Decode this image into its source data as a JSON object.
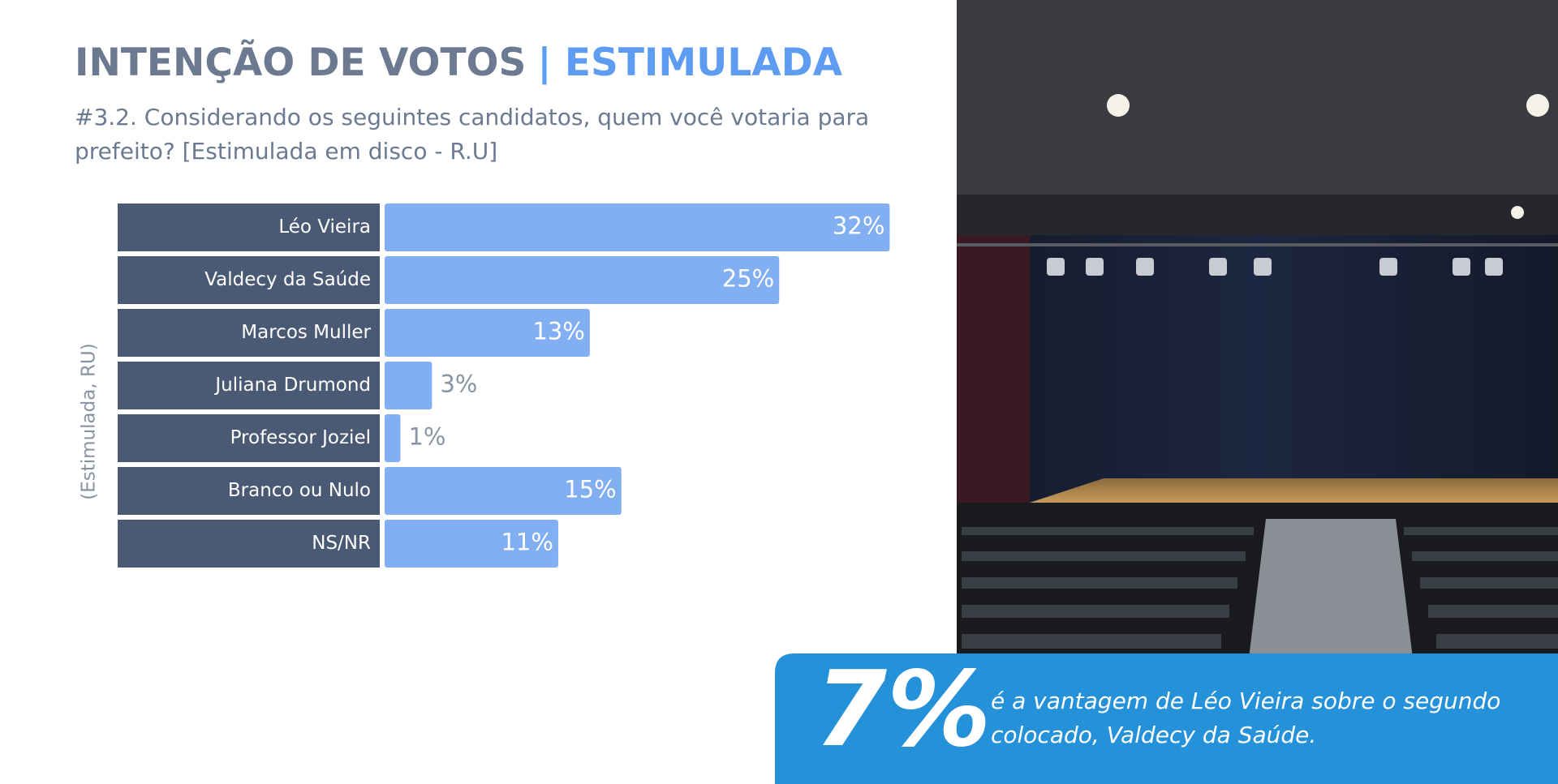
{
  "chart_data": {
    "type": "bar",
    "orientation": "horizontal",
    "title": "INTENÇÃO DE VOTOS",
    "title_highlight": "| ESTIMULADA",
    "subtitle": [
      "#3.2. Considerando os seguintes candidatos, quem você votaria para",
      "prefeito? [Estimulada em disco - R.U]"
    ],
    "ylabel": "(Estimulada, RU)",
    "categories": [
      "Léo Vieira",
      "Valdecy da Saúde",
      "Marcos Muller",
      "Juliana Drumond",
      "Professor Joziel",
      "Branco ou Nulo",
      "NS/NR"
    ],
    "values": [
      32,
      25,
      13,
      3,
      1,
      15,
      11
    ],
    "value_labels": [
      "32%",
      "25%",
      "13%",
      "3%",
      "1%",
      "15%",
      "11%"
    ],
    "color": "#82aef2",
    "label_box_color": "#4b5a74",
    "callout": {
      "big": "7%",
      "text": [
        "é a vantagem de Léo Vieira sobre o segundo",
        "colocado, Valdecy da Saúde."
      ]
    }
  }
}
